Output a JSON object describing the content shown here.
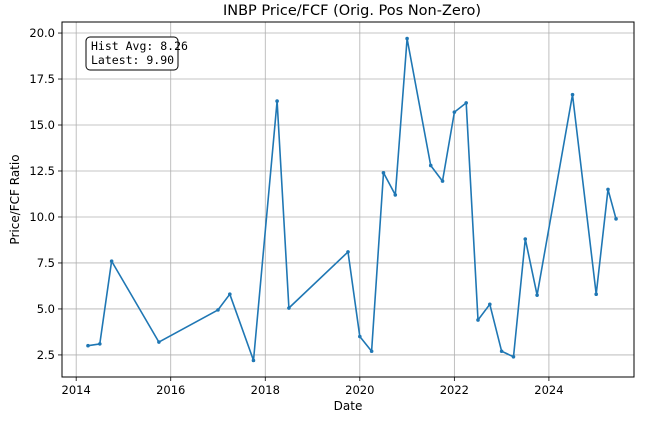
{
  "chart_data": {
    "type": "line",
    "title": "INBP Price/FCF (Orig. Pos Non-Zero)",
    "xlabel": "Date",
    "ylabel": "Price/FCF Ratio",
    "xlim": [
      2013.7,
      2025.8
    ],
    "ylim": [
      1.3,
      20.6
    ],
    "xticks": [
      2014,
      2016,
      2018,
      2020,
      2022,
      2024
    ],
    "yticks": [
      2.5,
      5.0,
      7.5,
      10.0,
      12.5,
      15.0,
      17.5,
      20.0
    ],
    "grid": true,
    "line_color": "#1f77b4",
    "annotation": {
      "lines": [
        "Hist Avg: 8.26",
        "Latest: 9.90"
      ],
      "placement": "top-left"
    },
    "series": [
      {
        "x": [
          2014.25,
          2014.5,
          2014.75,
          2015.75,
          2017.0,
          2017.25,
          2017.75,
          2018.25,
          2018.5,
          2019.75,
          2020.0,
          2020.25,
          2020.5,
          2020.75,
          2021.0,
          2021.5,
          2021.75,
          2022.0,
          2022.25,
          2022.5,
          2022.75,
          2023.0,
          2023.25,
          2023.5,
          2023.75,
          2024.5,
          2025.0,
          2025.25,
          2025.42
        ],
        "values": [
          3.0,
          3.1,
          7.6,
          3.2,
          4.95,
          5.8,
          2.2,
          16.3,
          5.05,
          8.1,
          3.5,
          2.7,
          12.4,
          11.2,
          19.7,
          12.8,
          11.95,
          15.7,
          16.2,
          4.4,
          5.25,
          2.7,
          2.4,
          8.8,
          5.75,
          16.65,
          5.8,
          11.5,
          9.9
        ]
      }
    ]
  }
}
